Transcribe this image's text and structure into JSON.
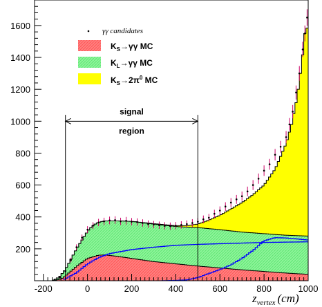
{
  "chart_data": {
    "type": "histogram",
    "xlabel": {
      "main": "z",
      "sub": "vertex",
      "unit": "(cm)"
    },
    "xlim": [
      -240,
      1000
    ],
    "ylim": [
      0,
      1760
    ],
    "xticks": [
      "-200",
      "0",
      "200",
      "400",
      "600",
      "800",
      "1000"
    ],
    "xtick_values": [
      -200,
      0,
      200,
      400,
      600,
      800,
      1000
    ],
    "yticks": [
      "200",
      "400",
      "600",
      "800",
      "1000",
      "1200",
      "1400",
      "1600"
    ],
    "ytick_values": [
      200,
      400,
      600,
      800,
      1000,
      1200,
      1400,
      1600
    ],
    "legend": {
      "placement": "top-left",
      "entries": [
        {
          "key": "data",
          "label": "γγ candidates",
          "marker": "point"
        },
        {
          "key": "ks_gg",
          "label_main": "K",
          "label_sub": "S",
          "label_rest": "→γγ MC",
          "color": "#ff6666",
          "fill": "hatched"
        },
        {
          "key": "kl_gg",
          "label_main": "K",
          "label_sub": "L",
          "label_rest": "→γγ MC",
          "color": "#66ff66",
          "fill": "hatched"
        },
        {
          "key": "ks_2pi0",
          "label_main": "K",
          "label_sub": "S",
          "label_rest": "→2π",
          "label_sup": "0",
          "label_tail": " MC",
          "color": "#ffff00",
          "fill": "solid"
        }
      ]
    },
    "annotation": {
      "text_line1": "signal",
      "text_line2": "region",
      "x_from": -100,
      "x_to": 500,
      "arrow_y": 1000
    },
    "colors": {
      "ks_gg": "#ff7070",
      "kl_gg": "#7cf28a",
      "ks_2pi0": "#ffff00",
      "outline": "#000000",
      "blue_curve": "#0000ff",
      "data_points": "#cc0066"
    },
    "series": {
      "ks_gg_top": {
        "x": [
          -240,
          -160,
          -120,
          -100,
          -50,
          0,
          50,
          80,
          150,
          300,
          500,
          700,
          900,
          1000
        ],
        "y": [
          0,
          0,
          10,
          30,
          90,
          140,
          160,
          162,
          150,
          120,
          92,
          68,
          48,
          40
        ]
      },
      "kl_gg_top": {
        "x": [
          -240,
          -160,
          -130,
          -100,
          -50,
          0,
          20,
          40,
          60,
          80,
          150,
          200,
          300,
          400,
          450,
          500,
          600,
          700,
          800,
          900,
          1000
        ],
        "y": [
          0,
          0,
          20,
          70,
          200,
          310,
          340,
          360,
          370,
          375,
          375,
          372,
          355,
          340,
          336,
          333,
          320,
          305,
          295,
          285,
          280
        ]
      },
      "ks_2pi0_top": {
        "x": [
          -240,
          -160,
          -130,
          -100,
          -50,
          0,
          20,
          40,
          60,
          80,
          150,
          200,
          300,
          400,
          450,
          500,
          550,
          600,
          650,
          700,
          750,
          800,
          850,
          900,
          925,
          950,
          970,
          985,
          1000
        ],
        "y": [
          0,
          0,
          20,
          70,
          200,
          310,
          340,
          360,
          370,
          375,
          375,
          372,
          358,
          345,
          345,
          355,
          380,
          410,
          450,
          490,
          540,
          600,
          700,
          860,
          980,
          1150,
          1350,
          1550,
          1600
        ]
      },
      "blue_upper": {
        "x": [
          -110,
          -50,
          0,
          50,
          100,
          200,
          300,
          400,
          500,
          600,
          700,
          800,
          900,
          1000
        ],
        "y": [
          5,
          50,
          105,
          145,
          170,
          195,
          210,
          222,
          228,
          232,
          236,
          240,
          242,
          244
        ]
      },
      "blue_lower": {
        "x": [
          330,
          400,
          450,
          500,
          550,
          600,
          650,
          700,
          750,
          800,
          850,
          900,
          950,
          1000
        ],
        "y": [
          0,
          2,
          5,
          20,
          45,
          70,
          100,
          140,
          190,
          250,
          270,
          268,
          262,
          255
        ]
      },
      "data": {
        "x": [
          -150,
          -125,
          -100,
          -75,
          -50,
          -25,
          0,
          25,
          50,
          75,
          100,
          125,
          150,
          175,
          200,
          225,
          250,
          275,
          300,
          325,
          350,
          375,
          400,
          425,
          450,
          475,
          500,
          525,
          550,
          575,
          600,
          625,
          650,
          675,
          700,
          725,
          750,
          775,
          800,
          825,
          850,
          875,
          900,
          915,
          930,
          945,
          960,
          975,
          985,
          995
        ],
        "y": [
          5,
          20,
          60,
          130,
          210,
          270,
          320,
          345,
          365,
          372,
          378,
          380,
          372,
          376,
          370,
          368,
          362,
          355,
          352,
          348,
          344,
          342,
          345,
          350,
          355,
          362,
          370,
          385,
          395,
          420,
          440,
          465,
          490,
          510,
          530,
          560,
          600,
          640,
          690,
          730,
          790,
          840,
          900,
          980,
          1060,
          1180,
          1300,
          1450,
          1550,
          1650
        ],
        "err": [
          3,
          6,
          10,
          14,
          18,
          20,
          22,
          22,
          23,
          23,
          24,
          24,
          23,
          24,
          23,
          23,
          23,
          23,
          23,
          23,
          23,
          23,
          23,
          23,
          23,
          24,
          24,
          24,
          24,
          25,
          26,
          27,
          28,
          28,
          29,
          30,
          31,
          32,
          33,
          34,
          36,
          37,
          38,
          40,
          42,
          44,
          46,
          48,
          50,
          52
        ]
      }
    }
  }
}
